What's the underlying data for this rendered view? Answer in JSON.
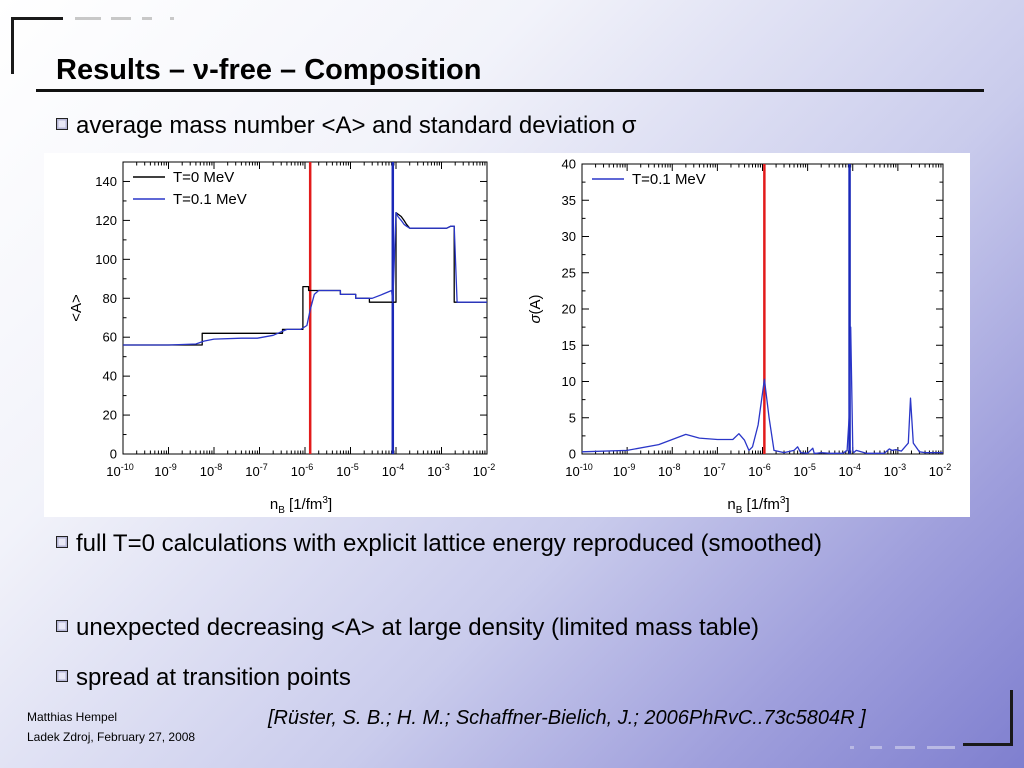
{
  "slide": {
    "title": "Results – ν-free – Composition",
    "bullets": [
      "average mass number <A> and standard deviation σ",
      "full T=0 calculations with explicit lattice energy reproduced (smoothed)",
      "unexpected decreasing <A> at large density (limited mass table)",
      "spread at transition points"
    ],
    "footer": {
      "author": "Matthias Hempel",
      "date_place": "Ladek Zdroj, February 27, 2008"
    },
    "citation": "[Rüster, S. B.; H. M.; Schaffner-Bielich, J.; 2006PhRvC..73c5804R ]"
  },
  "colors": {
    "t0": "#000000",
    "t01": "#2a36c8",
    "transition_red": "#e21b1b",
    "transition_blue": "#1a28b8"
  },
  "chart_data": [
    {
      "type": "line",
      "xlabel_main": "n",
      "xlabel_sub": "B",
      "xlabel_unit": " [1/fm",
      "xlabel_unit_exp": "3",
      "xlabel_close": "]",
      "ylabel": "<A>",
      "x_scale": "log",
      "xlim": [
        1e-10,
        0.01
      ],
      "ylim": [
        0,
        150
      ],
      "x_tick_base": "10",
      "x_tick_exponents": [
        "-10",
        "-9",
        "-8",
        "-7",
        "-6",
        "-5",
        "-4",
        "-3",
        "-2"
      ],
      "y_ticks": [
        "0",
        "20",
        "40",
        "60",
        "80",
        "100",
        "120",
        "140"
      ],
      "legend": {
        "position": "top-left",
        "entries": [
          "T=0 MeV",
          "T=0.1 MeV"
        ]
      },
      "vertical_lines": [
        {
          "x": 1.3e-06,
          "color": "red"
        },
        {
          "x": 8.5e-05,
          "color": "blue"
        }
      ],
      "series": [
        {
          "name": "T=0 MeV",
          "x": [
            1e-10,
            5.5e-09,
            5.5e-09,
            3.2e-07,
            3.2e-07,
            9e-07,
            9e-07,
            1.2e-06,
            1.2e-06,
            1.9e-06,
            1.9e-06,
            6e-06,
            6e-06,
            1.3e-05,
            1.3e-05,
            2.6e-05,
            2.6e-05,
            8.5e-05,
            8.5e-05,
            0.0001,
            0.0001,
            0.00013,
            0.00015,
            0.00017,
            0.0002,
            0.0002,
            0.0013,
            0.0016,
            0.0019,
            0.0019,
            0.01
          ],
          "y": [
            56,
            56,
            62,
            62,
            64,
            64,
            86,
            86,
            84,
            84,
            84,
            84,
            82,
            82,
            80,
            80,
            78,
            78,
            78,
            78,
            124,
            122,
            120,
            118,
            116,
            116,
            116,
            117,
            117,
            78,
            78
          ]
        },
        {
          "name": "T=0.1 MeV",
          "x": [
            1e-10,
            1e-09,
            4e-09,
            6e-09,
            1e-08,
            4e-08,
            9e-08,
            2e-07,
            4e-07,
            8e-07,
            1.1e-06,
            1.3e-06,
            1.6e-06,
            2e-06,
            6e-06,
            6e-06,
            1.3e-05,
            1.3e-05,
            2.6e-05,
            3e-05,
            5e-05,
            8e-05,
            8.5e-05,
            0.0001,
            0.00011,
            0.00013,
            0.00015,
            0.00017,
            0.0002,
            0.0013,
            0.0016,
            0.0019,
            0.0022,
            0.01
          ],
          "y": [
            56,
            56,
            56.5,
            58,
            59,
            59.5,
            59.5,
            61,
            64,
            64,
            66,
            74,
            82,
            84,
            84,
            82,
            82,
            80,
            80,
            80,
            82,
            84,
            78,
            124,
            122,
            120,
            118,
            117,
            116,
            116,
            117,
            117,
            78,
            78
          ]
        }
      ]
    },
    {
      "type": "line",
      "xlabel_main": "n",
      "xlabel_sub": "B",
      "xlabel_unit": " [1/fm",
      "xlabel_unit_exp": "3",
      "xlabel_close": "]",
      "ylabel_main": "σ",
      "ylabel_rest": "(A)",
      "x_scale": "log",
      "xlim": [
        1e-10,
        0.01
      ],
      "ylim": [
        0,
        40
      ],
      "x_tick_base": "10",
      "x_tick_exponents": [
        "-10",
        "-9",
        "-8",
        "-7",
        "-6",
        "-5",
        "-4",
        "-3",
        "-2"
      ],
      "y_ticks": [
        "0",
        "5",
        "10",
        "15",
        "20",
        "25",
        "30",
        "35",
        "40"
      ],
      "legend": {
        "position": "top-left",
        "entries": [
          "T=0.1 MeV"
        ]
      },
      "vertical_lines": [
        {
          "x": 1.1e-06,
          "color": "red"
        },
        {
          "x": 8.5e-05,
          "color": "blue"
        }
      ],
      "series": [
        {
          "name": "T=0.1 MeV",
          "x": [
            1e-10,
            1e-09,
            5e-09,
            2e-08,
            4e-08,
            1e-07,
            2.2e-07,
            3e-07,
            4e-07,
            5e-07,
            6e-07,
            8e-07,
            1.1e-06,
            1.4e-06,
            1.8e-06,
            3e-06,
            5e-06,
            6e-06,
            7e-06,
            1e-05,
            1.3e-05,
            1.4e-05,
            1.6e-05,
            2e-05,
            3e-05,
            6e-05,
            7.5e-05,
            8.3e-05,
            9e-05,
            0.0001,
            0.000105,
            0.00012,
            0.0002,
            0.0005,
            0.00065,
            0.00075,
            0.0009,
            0.0012,
            0.0017,
            0.0019,
            0.0022,
            0.003,
            0.004,
            0.01
          ],
          "y": [
            0.3,
            0.5,
            1.3,
            2.7,
            2.2,
            2,
            2,
            2.8,
            1.9,
            0.5,
            1,
            4,
            10.3,
            5,
            0.5,
            0.2,
            0.5,
            1,
            0.2,
            0.1,
            0.8,
            0.1,
            0.1,
            0.2,
            0.1,
            0.1,
            0.5,
            5,
            17.5,
            0.5,
            0.2,
            0.5,
            0.1,
            0.1,
            0.7,
            0.5,
            0.6,
            0.4,
            1.5,
            7.7,
            1.5,
            0.3,
            0.2,
            0.2
          ]
        }
      ]
    }
  ]
}
